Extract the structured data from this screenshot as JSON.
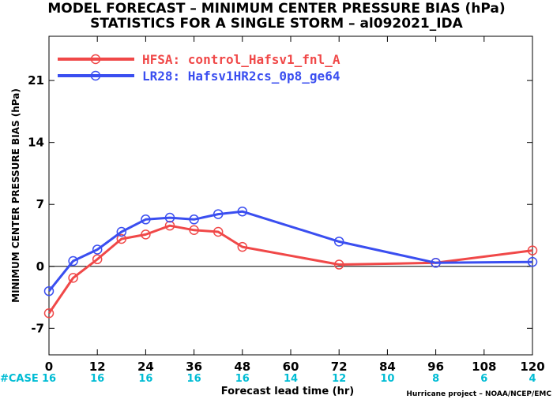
{
  "title_line1": "MODEL FORECAST – MINIMUM CENTER PRESSURE BIAS (hPa)",
  "title_line2": "STATISTICS FOR A SINGLE STORM – al092021_IDA",
  "credit": "Hurricane project – NOAA/NCEP/EMC",
  "case_label": "#CASE",
  "case_color": "#00bcd4",
  "chart_data": {
    "type": "line",
    "title": "MODEL FORECAST – MINIMUM CENTER PRESSURE BIAS (hPa)",
    "subtitle": "STATISTICS FOR A SINGLE STORM – al092021_IDA",
    "xlabel": "Forecast lead time (hr)",
    "ylabel": "MINIMUM CENTER PRESSURE BIAS (hPa)",
    "xlim": [
      0,
      120
    ],
    "ylim": [
      -10,
      26
    ],
    "xticks": [
      0,
      12,
      24,
      36,
      48,
      60,
      72,
      84,
      96,
      108,
      120
    ],
    "yticks": [
      -7,
      0,
      7,
      14,
      21
    ],
    "case_x": [
      0,
      12,
      24,
      36,
      48,
      60,
      72,
      84,
      96,
      108,
      120
    ],
    "case_counts": [
      "16",
      "16",
      "16",
      "16",
      "16",
      "14",
      "12",
      "10",
      "8",
      "6",
      "4"
    ],
    "zero_line": true,
    "grid": false,
    "legend_position": "top-left",
    "series": [
      {
        "name": "HFSA: control_Hafsv1_fnl_A",
        "color": "#f04848",
        "x": [
          0,
          6,
          12,
          18,
          24,
          30,
          36,
          42,
          48,
          72,
          96,
          120
        ],
        "y": [
          -5.3,
          -1.3,
          0.8,
          3.1,
          3.6,
          4.6,
          4.1,
          3.9,
          2.2,
          0.2,
          0.4,
          1.8
        ]
      },
      {
        "name": "LR28: Hafsv1HR2cs_0p8_ge64",
        "color": "#3a4ef0",
        "x": [
          0,
          6,
          12,
          18,
          24,
          30,
          36,
          42,
          48,
          72,
          96,
          120
        ],
        "y": [
          -2.8,
          0.6,
          1.9,
          3.9,
          5.3,
          5.5,
          5.3,
          5.9,
          6.2,
          2.8,
          0.4,
          0.5
        ]
      }
    ]
  }
}
